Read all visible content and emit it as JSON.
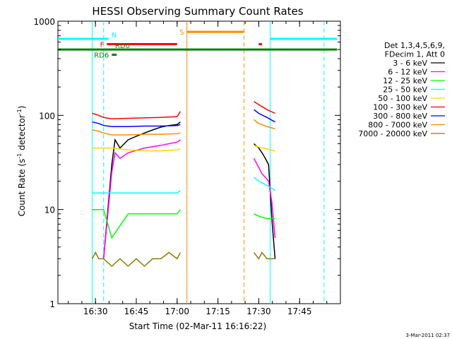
{
  "chart_data": {
    "type": "line",
    "title": "HESSI Observing Summary Count Rates",
    "xlabel": "Start Time (02-Mar-11 16:16:22)",
    "ylabel_main": "Count Rate (s",
    "ylabel_sup1": "-1",
    "ylabel_mid": " detector",
    "ylabel_sup2": "-1",
    "ylabel_end": ")",
    "yscale": "log",
    "ylim": [
      1,
      1000
    ],
    "xlim_minutes": [
      16.27,
      18.0
    ],
    "x_tick_labels": [
      "16:30",
      "16:45",
      "17:00",
      "17:15",
      "17:30",
      "17:45"
    ],
    "x_tick_minutes": [
      16.5,
      16.75,
      17.0,
      17.25,
      17.5,
      17.75
    ],
    "y_tick_labels": [
      "1",
      "10",
      "100",
      "1000"
    ],
    "y_tick_values": [
      1,
      10,
      100,
      1000
    ],
    "legend_header": [
      "Det 1,3,4,5,6,9,",
      "FDecim 1, Att 0"
    ],
    "legend_position": "right",
    "series": [
      {
        "name": "3 - 6 keV",
        "color": "#000000",
        "segments": [
          {
            "x": [
              16.55,
              16.6,
              16.62,
              16.65,
              16.7,
              16.75,
              16.8,
              16.85,
              16.9,
              16.95,
              17.0,
              17.02
            ],
            "y": [
              3,
              30,
              55,
              45,
              55,
              60,
              65,
              70,
              75,
              78,
              80,
              85
            ]
          },
          {
            "x": [
              17.47,
              17.5,
              17.52,
              17.54,
              17.56,
              17.58,
              17.6
            ],
            "y": [
              50,
              45,
              40,
              35,
              30,
              8,
              3
            ]
          }
        ]
      },
      {
        "name": "6 - 12 keV",
        "color": "#ff00ff",
        "segments": [
          {
            "x": [
              16.55,
              16.6,
              16.62,
              16.65,
              16.7,
              16.8,
              16.9,
              17.0,
              17.02
            ],
            "y": [
              3,
              25,
              40,
              35,
              40,
              45,
              48,
              52,
              55
            ]
          },
          {
            "x": [
              17.47,
              17.5,
              17.52,
              17.54,
              17.56,
              17.58,
              17.6
            ],
            "y": [
              35,
              28,
              24,
              22,
              20,
              12,
              5
            ]
          }
        ]
      },
      {
        "name": "12 - 25 keV",
        "color": "#00ff00",
        "segments": [
          {
            "x": [
              16.48,
              16.5,
              16.52,
              16.55,
              16.6,
              16.7,
              16.8,
              16.9,
              17.0,
              17.02
            ],
            "y": [
              10,
              10,
              10,
              10,
              5,
              9,
              9,
              9,
              9,
              10
            ]
          },
          {
            "x": [
              17.47,
              17.5,
              17.55,
              17.6
            ],
            "y": [
              9,
              8.5,
              8,
              8
            ]
          }
        ]
      },
      {
        "name": "25 - 50 keV",
        "color": "#00ffff",
        "segments": [
          {
            "x": [
              16.48,
              16.52,
              16.55,
              16.6,
              16.7,
              16.8,
              16.9,
              17.0,
              17.02
            ],
            "y": [
              15,
              15,
              15,
              15,
              15,
              15,
              15,
              15,
              16
            ]
          },
          {
            "x": [
              17.47,
              17.5,
              17.55,
              17.6
            ],
            "y": [
              22,
              20,
              18,
              16
            ]
          }
        ]
      },
      {
        "name": "50 - 100 keV",
        "color": "#ffd700",
        "segments": [
          {
            "x": [
              16.48,
              16.52,
              16.55,
              16.6,
              16.7,
              16.8,
              16.9,
              17.0,
              17.02
            ],
            "y": [
              45,
              45,
              45,
              45,
              43,
              42,
              42,
              43,
              44
            ]
          },
          {
            "x": [
              17.47,
              17.5,
              17.55,
              17.6
            ],
            "y": [
              48,
              46,
              44,
              42
            ]
          }
        ]
      },
      {
        "name": "100 - 300 keV",
        "color": "#ff0000",
        "segments": [
          {
            "x": [
              16.48,
              16.52,
              16.55,
              16.6,
              16.7,
              16.8,
              16.9,
              17.0,
              17.02
            ],
            "y": [
              105,
              100,
              95,
              92,
              93,
              94,
              95,
              97,
              110
            ]
          },
          {
            "x": [
              17.47,
              17.5,
              17.55,
              17.6
            ],
            "y": [
              140,
              130,
              115,
              105
            ]
          }
        ]
      },
      {
        "name": "300 - 800 keV",
        "color": "#0000ff",
        "segments": [
          {
            "x": [
              16.48,
              16.52,
              16.55,
              16.6,
              16.7,
              16.8,
              16.9,
              17.0,
              17.02
            ],
            "y": [
              85,
              82,
              78,
              76,
              76,
              77,
              77,
              78,
              80
            ]
          },
          {
            "x": [
              17.47,
              17.5,
              17.55,
              17.6
            ],
            "y": [
              115,
              105,
              95,
              85
            ]
          }
        ]
      },
      {
        "name": "800 - 7000 keV",
        "color": "#ff8c00",
        "segments": [
          {
            "x": [
              16.48,
              16.52,
              16.55,
              16.6,
              16.7,
              16.8,
              16.9,
              17.0,
              17.02
            ],
            "y": [
              70,
              68,
              65,
              62,
              62,
              63,
              63,
              64,
              65
            ]
          },
          {
            "x": [
              17.47,
              17.5,
              17.55,
              17.6
            ],
            "y": [
              90,
              82,
              76,
              72
            ]
          }
        ]
      },
      {
        "name": "7000 - 20000 keV",
        "color": "#8b7d00",
        "segments": [
          {
            "x": [
              16.48,
              16.5,
              16.52,
              16.55,
              16.6,
              16.65,
              16.7,
              16.75,
              16.8,
              16.85,
              16.9,
              16.95,
              17.0,
              17.02
            ],
            "y": [
              3,
              3.5,
              3,
              3,
              2.5,
              3,
              2.5,
              3,
              2.5,
              3,
              3,
              3.5,
              3,
              3.5
            ]
          },
          {
            "x": [
              17.47,
              17.5,
              17.52,
              17.55,
              17.58,
              17.6
            ],
            "y": [
              3.5,
              3,
              3.5,
              3,
              3,
              3
            ]
          }
        ]
      }
    ],
    "flags": [
      {
        "label": "N",
        "color": "#00ffff",
        "x0": 16.27,
        "x1": 17.98,
        "y": 650,
        "gap": [
          16.58,
          17.57
        ]
      },
      {
        "label": "F",
        "color": "#ff0000",
        "x0": 16.57,
        "x1": 17.0,
        "y": 570
      },
      {
        "label": "",
        "color": "#ff0000",
        "x0": 17.5,
        "x1": 17.52,
        "y": 570
      },
      {
        "label": "S",
        "color": "#ff8c00",
        "x0": 17.06,
        "x1": 17.41,
        "y": 770
      },
      {
        "label": "RD6",
        "color": "#008000",
        "x0": 16.6,
        "x1": 16.63,
        "y": 440
      },
      {
        "label": "RD0",
        "color": "#008000",
        "x0": 16.27,
        "x1": 17.98,
        "y": 500
      }
    ],
    "vertical_markers": [
      {
        "x": 16.48,
        "color": "#00ffff",
        "dashed": false
      },
      {
        "x": 16.55,
        "color": "#00ffff",
        "dashed": true
      },
      {
        "x": 17.06,
        "color": "#ff8c00",
        "dashed": false
      },
      {
        "x": 17.41,
        "color": "#ff8c00",
        "dashed": true
      },
      {
        "x": 17.57,
        "color": "#00ffff",
        "dashed": false
      },
      {
        "x": 17.9,
        "color": "#00ffff",
        "dashed": true
      }
    ]
  },
  "footer": {
    "timestamp": "3-Mar-2011 02:37"
  }
}
